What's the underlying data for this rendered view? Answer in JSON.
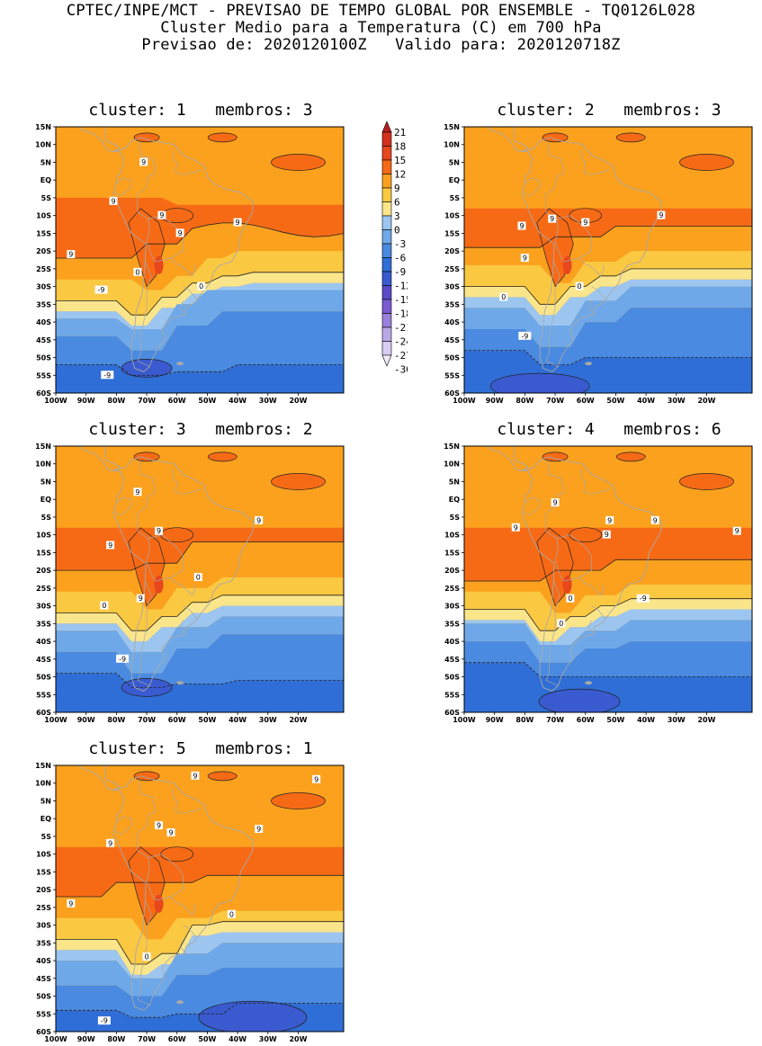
{
  "header": {
    "line1": "CPTEC/INPE/MCT - PREVISAO DE TEMPO GLOBAL POR ENSEMBLE - TQ0126L028",
    "line2": "Cluster Medio para a Temperatura (C) em 700 hPa",
    "line3": "Previsao de: 2020120100Z   Valido para: 2020120718Z"
  },
  "colors": {
    "levels": {
      "gt18": "#b81e1e",
      "15_18": "#d3301f",
      "12_15": "#e8461c",
      "9_12": "#f76a15",
      "6_9": "#fba11e",
      "3_6": "#fbc842",
      "0_3": "#fbe58a",
      "m3_0": "#9cc6f0",
      "m6_m3": "#6ea8e8",
      "m9_m6": "#4a8ae0",
      "m12_m9": "#2f6ed6",
      "m15_m12": "#3a5ad0",
      "m18_m15": "#5a4ac8",
      "m21_m18": "#7a5ad2",
      "m24_m21": "#9a80dc",
      "m27_m24": "#baa8e6",
      "m30_m27": "#d8ccf2",
      "lt_m30": "#f0ecfa"
    },
    "coast": "#a8a8a8"
  },
  "colorbar": {
    "labels": [
      "21",
      "18",
      "15",
      "12",
      "9",
      "6",
      "3",
      "0",
      "-3",
      "-6",
      "-9",
      "-12",
      "-15",
      "-18",
      "-21",
      "-24",
      "-27",
      "-30"
    ]
  },
  "axes": {
    "lat_labels": [
      "15N",
      "10N",
      "5N",
      "EQ",
      "5S",
      "10S",
      "15S",
      "20S",
      "25S",
      "30S",
      "35S",
      "40S",
      "45S",
      "50S",
      "55S",
      "60S"
    ],
    "lon_labels": [
      "100W",
      "90W",
      "80W",
      "70W",
      "60W",
      "50W",
      "40W",
      "30W",
      "20W"
    ]
  },
  "panels": [
    {
      "title": "cluster: 1   membros: 3",
      "variant": 1,
      "contour_labels": [
        "9",
        "9",
        "9",
        "9",
        "9",
        "9",
        "0",
        "0",
        "-9",
        "-9"
      ]
    },
    {
      "title": "cluster: 2   membros: 3",
      "variant": 2,
      "contour_labels": [
        "9",
        "9",
        "9",
        "9",
        "9",
        "0",
        "0",
        "-9"
      ]
    },
    {
      "title": "cluster: 3   membros: 2",
      "variant": 3,
      "contour_labels": [
        "9",
        "9",
        "9",
        "9",
        "9",
        "0",
        "0",
        "-9"
      ]
    },
    {
      "title": "cluster: 4   membros: 6",
      "variant": 4,
      "contour_labels": [
        "9",
        "9",
        "9",
        "9",
        "9",
        "9",
        "0",
        "0",
        "-9"
      ]
    },
    {
      "title": "cluster: 5   membros: 1",
      "variant": 5,
      "contour_labels": [
        "9",
        "9",
        "9",
        "9",
        "9",
        "9",
        "9",
        "0",
        "0",
        "-9"
      ]
    }
  ]
}
